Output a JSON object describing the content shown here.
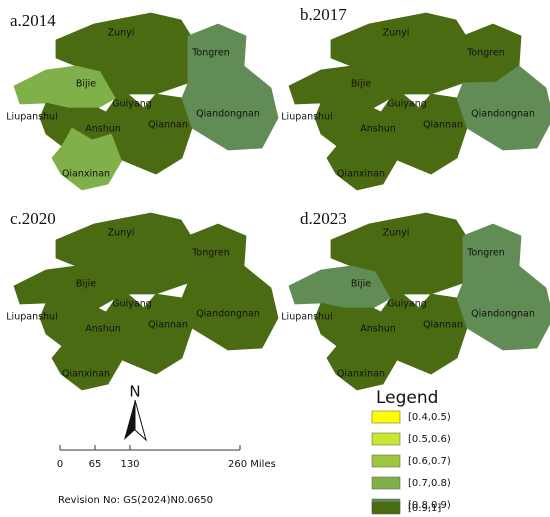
{
  "panels": [
    {
      "title": "a.2014",
      "regions": [
        {
          "name": "Zunyi",
          "color": "#4b6b12"
        },
        {
          "name": "Tongren",
          "color": "#628c55"
        },
        {
          "name": "Bijie",
          "color": "#80b04a"
        },
        {
          "name": "Guiyang",
          "color": "#4b6b12"
        },
        {
          "name": "Liupanshui",
          "color": "#4b6b12"
        },
        {
          "name": "Anshun",
          "color": "#4b6b12"
        },
        {
          "name": "Qianxinan",
          "color": "#80b04a"
        },
        {
          "name": "Qiannan",
          "color": "#4b6b12"
        },
        {
          "name": "Qiandongnan",
          "color": "#628c55"
        }
      ]
    },
    {
      "title": "b.2017",
      "regions": [
        {
          "name": "Zunyi",
          "color": "#4b6b12"
        },
        {
          "name": "Tongren",
          "color": "#4b6b12"
        },
        {
          "name": "Bijie",
          "color": "#4b6b12"
        },
        {
          "name": "Guiyang",
          "color": "#4b6b12"
        },
        {
          "name": "Liupanshui",
          "color": "#4b6b12"
        },
        {
          "name": "Anshun",
          "color": "#4b6b12"
        },
        {
          "name": "Qianxinan",
          "color": "#4b6b12"
        },
        {
          "name": "Qiannan",
          "color": "#4b6b12"
        },
        {
          "name": "Qiandongnan",
          "color": "#628c55"
        }
      ]
    },
    {
      "title": "c.2020",
      "regions": [
        {
          "name": "Zunyi",
          "color": "#4b6b12"
        },
        {
          "name": "Tongren",
          "color": "#4b6b12"
        },
        {
          "name": "Bijie",
          "color": "#4b6b12"
        },
        {
          "name": "Guiyang",
          "color": "#4b6b12"
        },
        {
          "name": "Liupanshui",
          "color": "#4b6b12"
        },
        {
          "name": "Anshun",
          "color": "#4b6b12"
        },
        {
          "name": "Qianxinan",
          "color": "#4b6b12"
        },
        {
          "name": "Qiannan",
          "color": "#4b6b12"
        },
        {
          "name": "Qiandongnan",
          "color": "#4b6b12"
        }
      ]
    },
    {
      "title": "d.2023",
      "regions": [
        {
          "name": "Zunyi",
          "color": "#4b6b12"
        },
        {
          "name": "Tongren",
          "color": "#628c55"
        },
        {
          "name": "Bijie",
          "color": "#628c55"
        },
        {
          "name": "Guiyang",
          "color": "#4b6b12"
        },
        {
          "name": "Liupanshui",
          "color": "#4b6b12"
        },
        {
          "name": "Anshun",
          "color": "#4b6b12"
        },
        {
          "name": "Qianxinan",
          "color": "#4b6b12"
        },
        {
          "name": "Qiannan",
          "color": "#4b6b12"
        },
        {
          "name": "Qiandongnan",
          "color": "#628c55"
        }
      ]
    }
  ],
  "legend": {
    "title": "Legend",
    "items": [
      {
        "label": "[0.4,0.5)",
        "color": "#ffff00"
      },
      {
        "label": "[0.5,0.6)",
        "color": "#c8e632"
      },
      {
        "label": "[0.6,0.7)",
        "color": "#9cc63c"
      },
      {
        "label": "[0.7,0.8)",
        "color": "#80b04a"
      },
      {
        "label": "[0.8,0.9)",
        "color": "#628c55"
      },
      {
        "label": "[0.9,1]",
        "color": "#4b6b12"
      }
    ]
  },
  "north": "N",
  "scale": {
    "labels": [
      "0",
      "65",
      "130",
      "260 Miles"
    ]
  },
  "revision": "Revision No: GS(2024)N0.0650"
}
